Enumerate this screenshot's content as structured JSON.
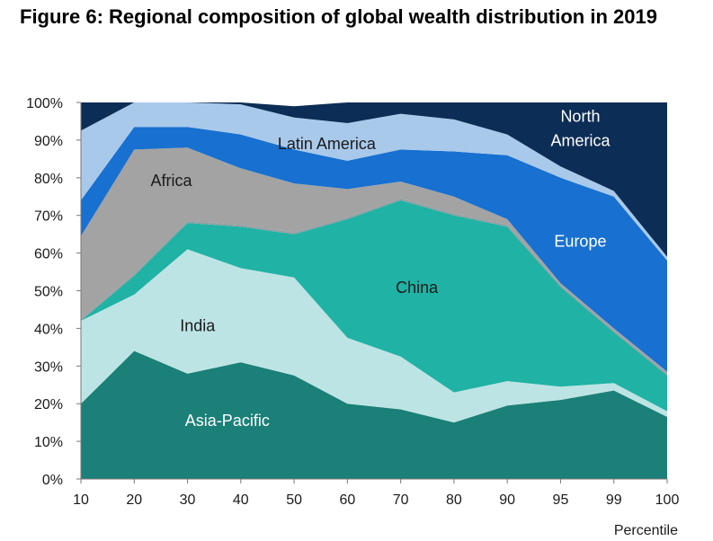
{
  "title": "Figure 6: Regional composition of global wealth distribution in 2019",
  "chart_data": {
    "type": "area",
    "stacked": true,
    "x": [
      "10",
      "20",
      "30",
      "40",
      "50",
      "60",
      "70",
      "80",
      "90",
      "95",
      "99",
      "100"
    ],
    "xlabel": "Percentile",
    "ylabel": "",
    "ylim": [
      0,
      100
    ],
    "yticks": [
      "0%",
      "10%",
      "20%",
      "30%",
      "40%",
      "50%",
      "60%",
      "70%",
      "80%",
      "90%",
      "100%"
    ],
    "grid": false,
    "legend": "none",
    "series": [
      {
        "name": "Asia-Pacific",
        "color": "#1b8077",
        "label_color": "#ffffff",
        "values": [
          20,
          34,
          28,
          31,
          27.5,
          20,
          18.5,
          15,
          19.5,
          21,
          23.5,
          16.5
        ]
      },
      {
        "name": "India",
        "color": "#bde4e4",
        "label_color": "#1a1a1a",
        "values": [
          22,
          15,
          33,
          25,
          26,
          17.5,
          14,
          8,
          6.5,
          3.5,
          2,
          1.5
        ]
      },
      {
        "name": "China",
        "color": "#20b2a4",
        "label_color": "#1a1a1a",
        "values": [
          0,
          5,
          7,
          11,
          11.5,
          31.5,
          41.5,
          47,
          41,
          26.5,
          13.5,
          9.5
        ]
      },
      {
        "name": "",
        "color": "#909fa3",
        "label_color": "#1a1a1a",
        "values": [
          0.5,
          0.5,
          0.5,
          0.5,
          0.5,
          0.5,
          0.5,
          0.5,
          0.5,
          0.5,
          0.5,
          0.5
        ]
      },
      {
        "name": "Africa",
        "color": "#a3a3a3",
        "label_color": "#1a1a1a",
        "values": [
          22,
          33,
          19.5,
          15,
          13,
          7.5,
          4.5,
          4.5,
          1.5,
          0.5,
          0.5,
          0.5
        ]
      },
      {
        "name": "Europe",
        "color": "#1870d0",
        "label_color": "#ffffff",
        "values": [
          9.5,
          6,
          5.5,
          9,
          9,
          7.5,
          8.5,
          12,
          17,
          28,
          35,
          29.5
        ]
      },
      {
        "name": "Latin America",
        "color": "#a9c9ea",
        "label_color": "#1a1a1a",
        "values": [
          18.5,
          6.5,
          6.5,
          8,
          8.5,
          10,
          9.5,
          8.5,
          5.5,
          3,
          1.5,
          1
        ]
      },
      {
        "name": "North America",
        "color": "#0c2d55",
        "label_color": "#ffffff",
        "values": [
          7.5,
          0,
          0,
          0.5,
          3,
          5.5,
          3,
          4.5,
          8.5,
          17,
          23.5,
          41
        ]
      }
    ]
  }
}
